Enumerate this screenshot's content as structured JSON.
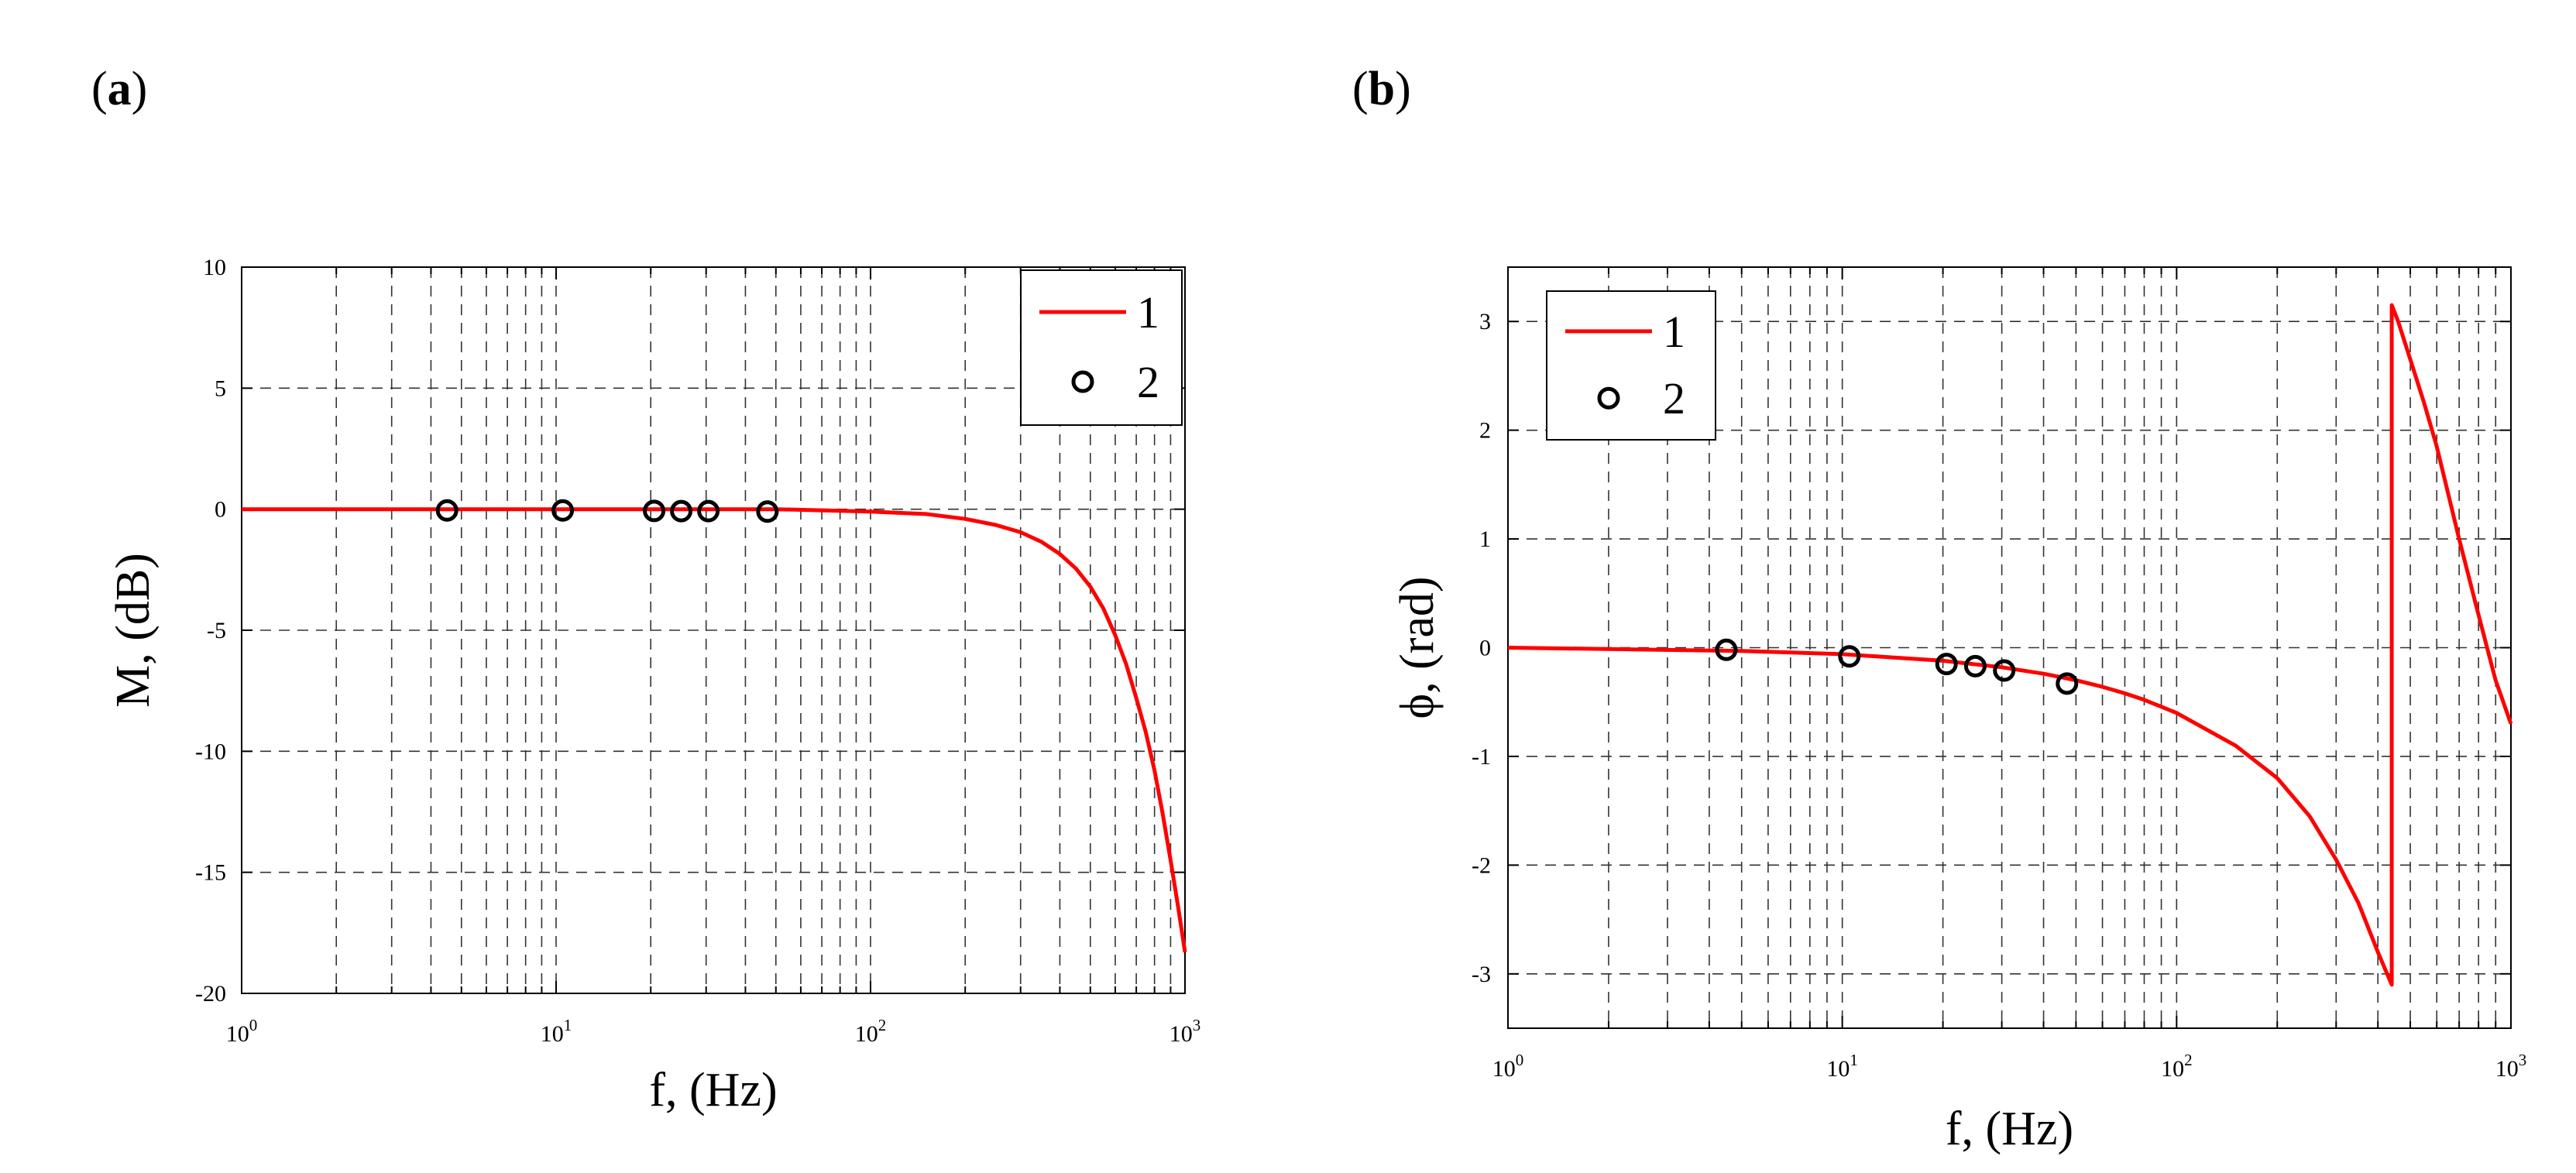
{
  "chart_data": [
    {
      "panel_label": "(a)",
      "panel_letter": "a",
      "type": "line",
      "xscale": "log",
      "xlim": [
        1,
        1000
      ],
      "ylim": [
        -20,
        10
      ],
      "xlabel": "f, (Hz)",
      "ylabel": "M, (dB)",
      "x_ticks": [
        {
          "base": "10",
          "exp": "0",
          "value": 1
        },
        {
          "base": "10",
          "exp": "1",
          "value": 10
        },
        {
          "base": "10",
          "exp": "2",
          "value": 100
        },
        {
          "base": "10",
          "exp": "3",
          "value": 1000
        }
      ],
      "y_ticks": [
        {
          "label": "10",
          "value": 10
        },
        {
          "label": "5",
          "value": 5
        },
        {
          "label": "0",
          "value": 0
        },
        {
          "label": "-5",
          "value": -5
        },
        {
          "label": "-10",
          "value": -10
        },
        {
          "label": "-15",
          "value": -15
        },
        {
          "label": "-20",
          "value": -20
        }
      ],
      "grid": true,
      "legend": {
        "position": "top-right",
        "entries": [
          "1",
          "2"
        ]
      },
      "series": [
        {
          "name": "1",
          "style": "line",
          "color": "#ff0000",
          "x": [
            1,
            10,
            50,
            100,
            150,
            200,
            250,
            300,
            350,
            400,
            450,
            500,
            550,
            600,
            650,
            700,
            750,
            800,
            850,
            900,
            950,
            1000
          ],
          "y": [
            0,
            0,
            0,
            -0.1,
            -0.2,
            -0.4,
            -0.65,
            -0.95,
            -1.35,
            -1.85,
            -2.45,
            -3.2,
            -4.1,
            -5.2,
            -6.4,
            -7.8,
            -9.2,
            -10.8,
            -12.6,
            -14.5,
            -16.4,
            -18.3
          ]
        },
        {
          "name": "2",
          "style": "marker",
          "color": "#000000",
          "x": [
            4.5,
            10.5,
            20.5,
            25,
            30.5,
            47
          ],
          "y": [
            -0.05,
            -0.05,
            -0.07,
            -0.08,
            -0.08,
            -0.1
          ]
        }
      ]
    },
    {
      "panel_label": "(b)",
      "panel_letter": "b",
      "type": "line",
      "xscale": "log",
      "xlim": [
        1,
        1000
      ],
      "ylim": [
        -3.5,
        3.5
      ],
      "xlabel": "f, (Hz)",
      "ylabel": "ϕ, (rad)",
      "x_ticks": [
        {
          "base": "10",
          "exp": "0",
          "value": 1
        },
        {
          "base": "10",
          "exp": "1",
          "value": 10
        },
        {
          "base": "10",
          "exp": "2",
          "value": 100
        },
        {
          "base": "10",
          "exp": "3",
          "value": 1000
        }
      ],
      "y_ticks": [
        {
          "label": "3",
          "value": 3
        },
        {
          "label": "2",
          "value": 2
        },
        {
          "label": "1",
          "value": 1
        },
        {
          "label": "0",
          "value": 0
        },
        {
          "label": "-1",
          "value": -1
        },
        {
          "label": "-2",
          "value": -2
        },
        {
          "label": "-3",
          "value": -3
        }
      ],
      "grid": true,
      "legend": {
        "position": "top-left",
        "entries": [
          "1",
          "2"
        ]
      },
      "series": [
        {
          "name": "1",
          "style": "line",
          "color": "#ff0000",
          "x": [
            1,
            5,
            10,
            20,
            30,
            40,
            50,
            60,
            70,
            80,
            100,
            150,
            200,
            250,
            300,
            350,
            400,
            440,
            440,
            460,
            500,
            550,
            600,
            700,
            800,
            900,
            1000
          ],
          "y": [
            0,
            -0.03,
            -0.06,
            -0.12,
            -0.18,
            -0.24,
            -0.3,
            -0.36,
            -0.42,
            -0.48,
            -0.6,
            -0.9,
            -1.2,
            -1.55,
            -1.95,
            -2.35,
            -2.8,
            -3.1,
            3.15,
            3.0,
            2.65,
            2.25,
            1.85,
            1.0,
            0.3,
            -0.3,
            -0.7
          ]
        },
        {
          "name": "2",
          "style": "marker",
          "color": "#000000",
          "x": [
            4.5,
            10.5,
            20.5,
            25,
            30.5,
            47
          ],
          "y": [
            -0.02,
            -0.08,
            -0.15,
            -0.17,
            -0.21,
            -0.33
          ]
        }
      ]
    }
  ]
}
